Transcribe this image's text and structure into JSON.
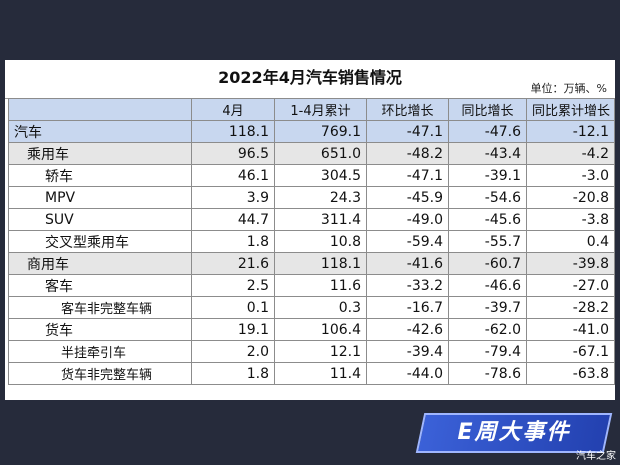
{
  "title": "2022年4月汽车销售情况",
  "unit": "单位：万辆、%",
  "columns": [
    "",
    "4月",
    "1-4月累计",
    "环比增长",
    "同比增长",
    "同比累计增长"
  ],
  "rows": [
    {
      "name": "汽车",
      "level": 0,
      "values": [
        "118.1",
        "769.1",
        "-47.1",
        "-47.6",
        "-12.1"
      ]
    },
    {
      "name": "乘用车",
      "level": 1,
      "values": [
        "96.5",
        "651.0",
        "-48.2",
        "-43.4",
        "-4.2"
      ]
    },
    {
      "name": "轿车",
      "level": 2,
      "values": [
        "46.1",
        "304.5",
        "-47.1",
        "-39.1",
        "-3.0"
      ]
    },
    {
      "name": "MPV",
      "level": 2,
      "values": [
        "3.9",
        "24.3",
        "-45.9",
        "-54.6",
        "-20.8"
      ]
    },
    {
      "name": "SUV",
      "level": 2,
      "values": [
        "44.7",
        "311.4",
        "-49.0",
        "-45.6",
        "-3.8"
      ]
    },
    {
      "name": "交叉型乘用车",
      "level": 2,
      "values": [
        "1.8",
        "10.8",
        "-59.4",
        "-55.7",
        "0.4"
      ]
    },
    {
      "name": "商用车",
      "level": 1,
      "values": [
        "21.6",
        "118.1",
        "-41.6",
        "-60.7",
        "-39.8"
      ]
    },
    {
      "name": "客车",
      "level": 2,
      "values": [
        "2.5",
        "11.6",
        "-33.2",
        "-46.6",
        "-27.0"
      ]
    },
    {
      "name": "客车非完整车辆",
      "level": 3,
      "values": [
        "0.1",
        "0.3",
        "-16.7",
        "-39.7",
        "-28.2"
      ]
    },
    {
      "name": "货车",
      "level": 2,
      "values": [
        "19.1",
        "106.4",
        "-42.6",
        "-62.0",
        "-41.0"
      ]
    },
    {
      "name": "半挂牵引车",
      "level": 3,
      "values": [
        "2.0",
        "12.1",
        "-39.4",
        "-79.4",
        "-67.1"
      ]
    },
    {
      "name": "货车非完整车辆",
      "level": 3,
      "values": [
        "1.8",
        "11.4",
        "-44.0",
        "-78.6",
        "-63.8"
      ]
    }
  ],
  "banner": "E周大事件",
  "source": "汽车之家"
}
